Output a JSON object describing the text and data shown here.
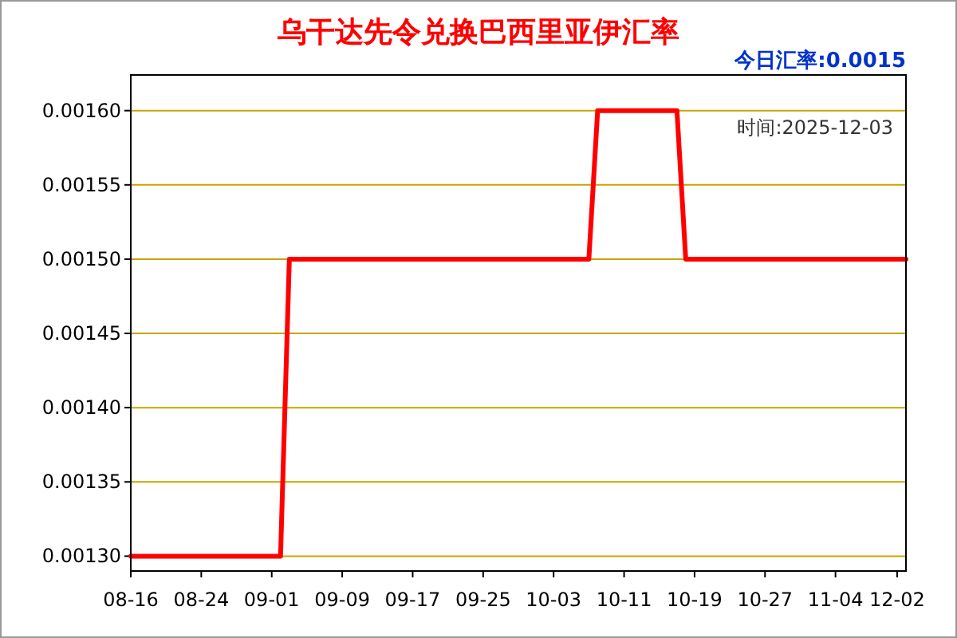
{
  "chart_data": {
    "type": "line",
    "title": "乌干达先令兑换巴西里亚伊汇率",
    "annotations": [
      "今日汇率:0.0015",
      "时间:2025-12-03"
    ],
    "categories": [
      "08-16",
      null,
      null,
      null,
      null,
      null,
      null,
      null,
      "08-24",
      null,
      null,
      null,
      null,
      null,
      null,
      null,
      "09-01",
      null,
      null,
      null,
      null,
      null,
      null,
      null,
      "09-09",
      null,
      null,
      null,
      null,
      null,
      null,
      null,
      "09-17",
      null,
      null,
      null,
      null,
      null,
      null,
      null,
      "09-25",
      null,
      null,
      null,
      null,
      null,
      null,
      null,
      "10-03",
      null,
      null,
      null,
      null,
      null,
      null,
      null,
      "10-11",
      null,
      null,
      null,
      null,
      null,
      null,
      null,
      "10-19",
      null,
      null,
      null,
      null,
      null,
      null,
      null,
      "10-27",
      null,
      null,
      null,
      null,
      null,
      null,
      null,
      "11-04",
      null,
      null,
      null,
      null,
      null,
      null,
      "12-02",
      null
    ],
    "series": [
      {
        "color": "#ff0000",
        "values": [
          0.0013,
          0.0013,
          0.0013,
          0.0013,
          0.0013,
          0.0013,
          0.0013,
          0.0013,
          0.0013,
          0.0013,
          0.0013,
          0.0013,
          0.0013,
          0.0013,
          0.0013,
          0.0013,
          0.0013,
          0.0013,
          0.0015,
          0.0015,
          0.0015,
          0.0015,
          0.0015,
          0.0015,
          0.0015,
          0.0015,
          0.0015,
          0.0015,
          0.0015,
          0.0015,
          0.0015,
          0.0015,
          0.0015,
          0.0015,
          0.0015,
          0.0015,
          0.0015,
          0.0015,
          0.0015,
          0.0015,
          0.0015,
          0.0015,
          0.0015,
          0.0015,
          0.0015,
          0.0015,
          0.0015,
          0.0015,
          0.0015,
          0.0015,
          0.0015,
          0.0015,
          0.0015,
          0.0016,
          0.0016,
          0.0016,
          0.0016,
          0.0016,
          0.0016,
          0.0016,
          0.0016,
          0.0016,
          0.0016,
          0.0015,
          0.0015,
          0.0015,
          0.0015,
          0.0015,
          0.0015,
          0.0015,
          0.0015,
          0.0015,
          0.0015,
          0.0015,
          0.0015,
          0.0015,
          0.0015,
          0.0015,
          0.0015,
          0.0015,
          0.0015,
          0.0015,
          0.0015,
          0.0015,
          0.0015,
          0.0015,
          0.0015,
          0.0015,
          0.0015
        ]
      }
    ],
    "ylim": [
      0.00129,
      0.001624
    ],
    "yticks": [
      {
        "value": 0.0013,
        "label": "0.00130"
      },
      {
        "value": 0.00135,
        "label": "0.00135"
      },
      {
        "value": 0.0014,
        "label": "0.00140"
      },
      {
        "value": 0.00145,
        "label": "0.00145"
      },
      {
        "value": 0.0015,
        "label": "0.00150"
      },
      {
        "value": 0.00155,
        "label": "0.00155"
      },
      {
        "value": 0.0016,
        "label": "0.00160"
      }
    ],
    "grid": "y",
    "marker": "none",
    "line_style": "solid"
  }
}
